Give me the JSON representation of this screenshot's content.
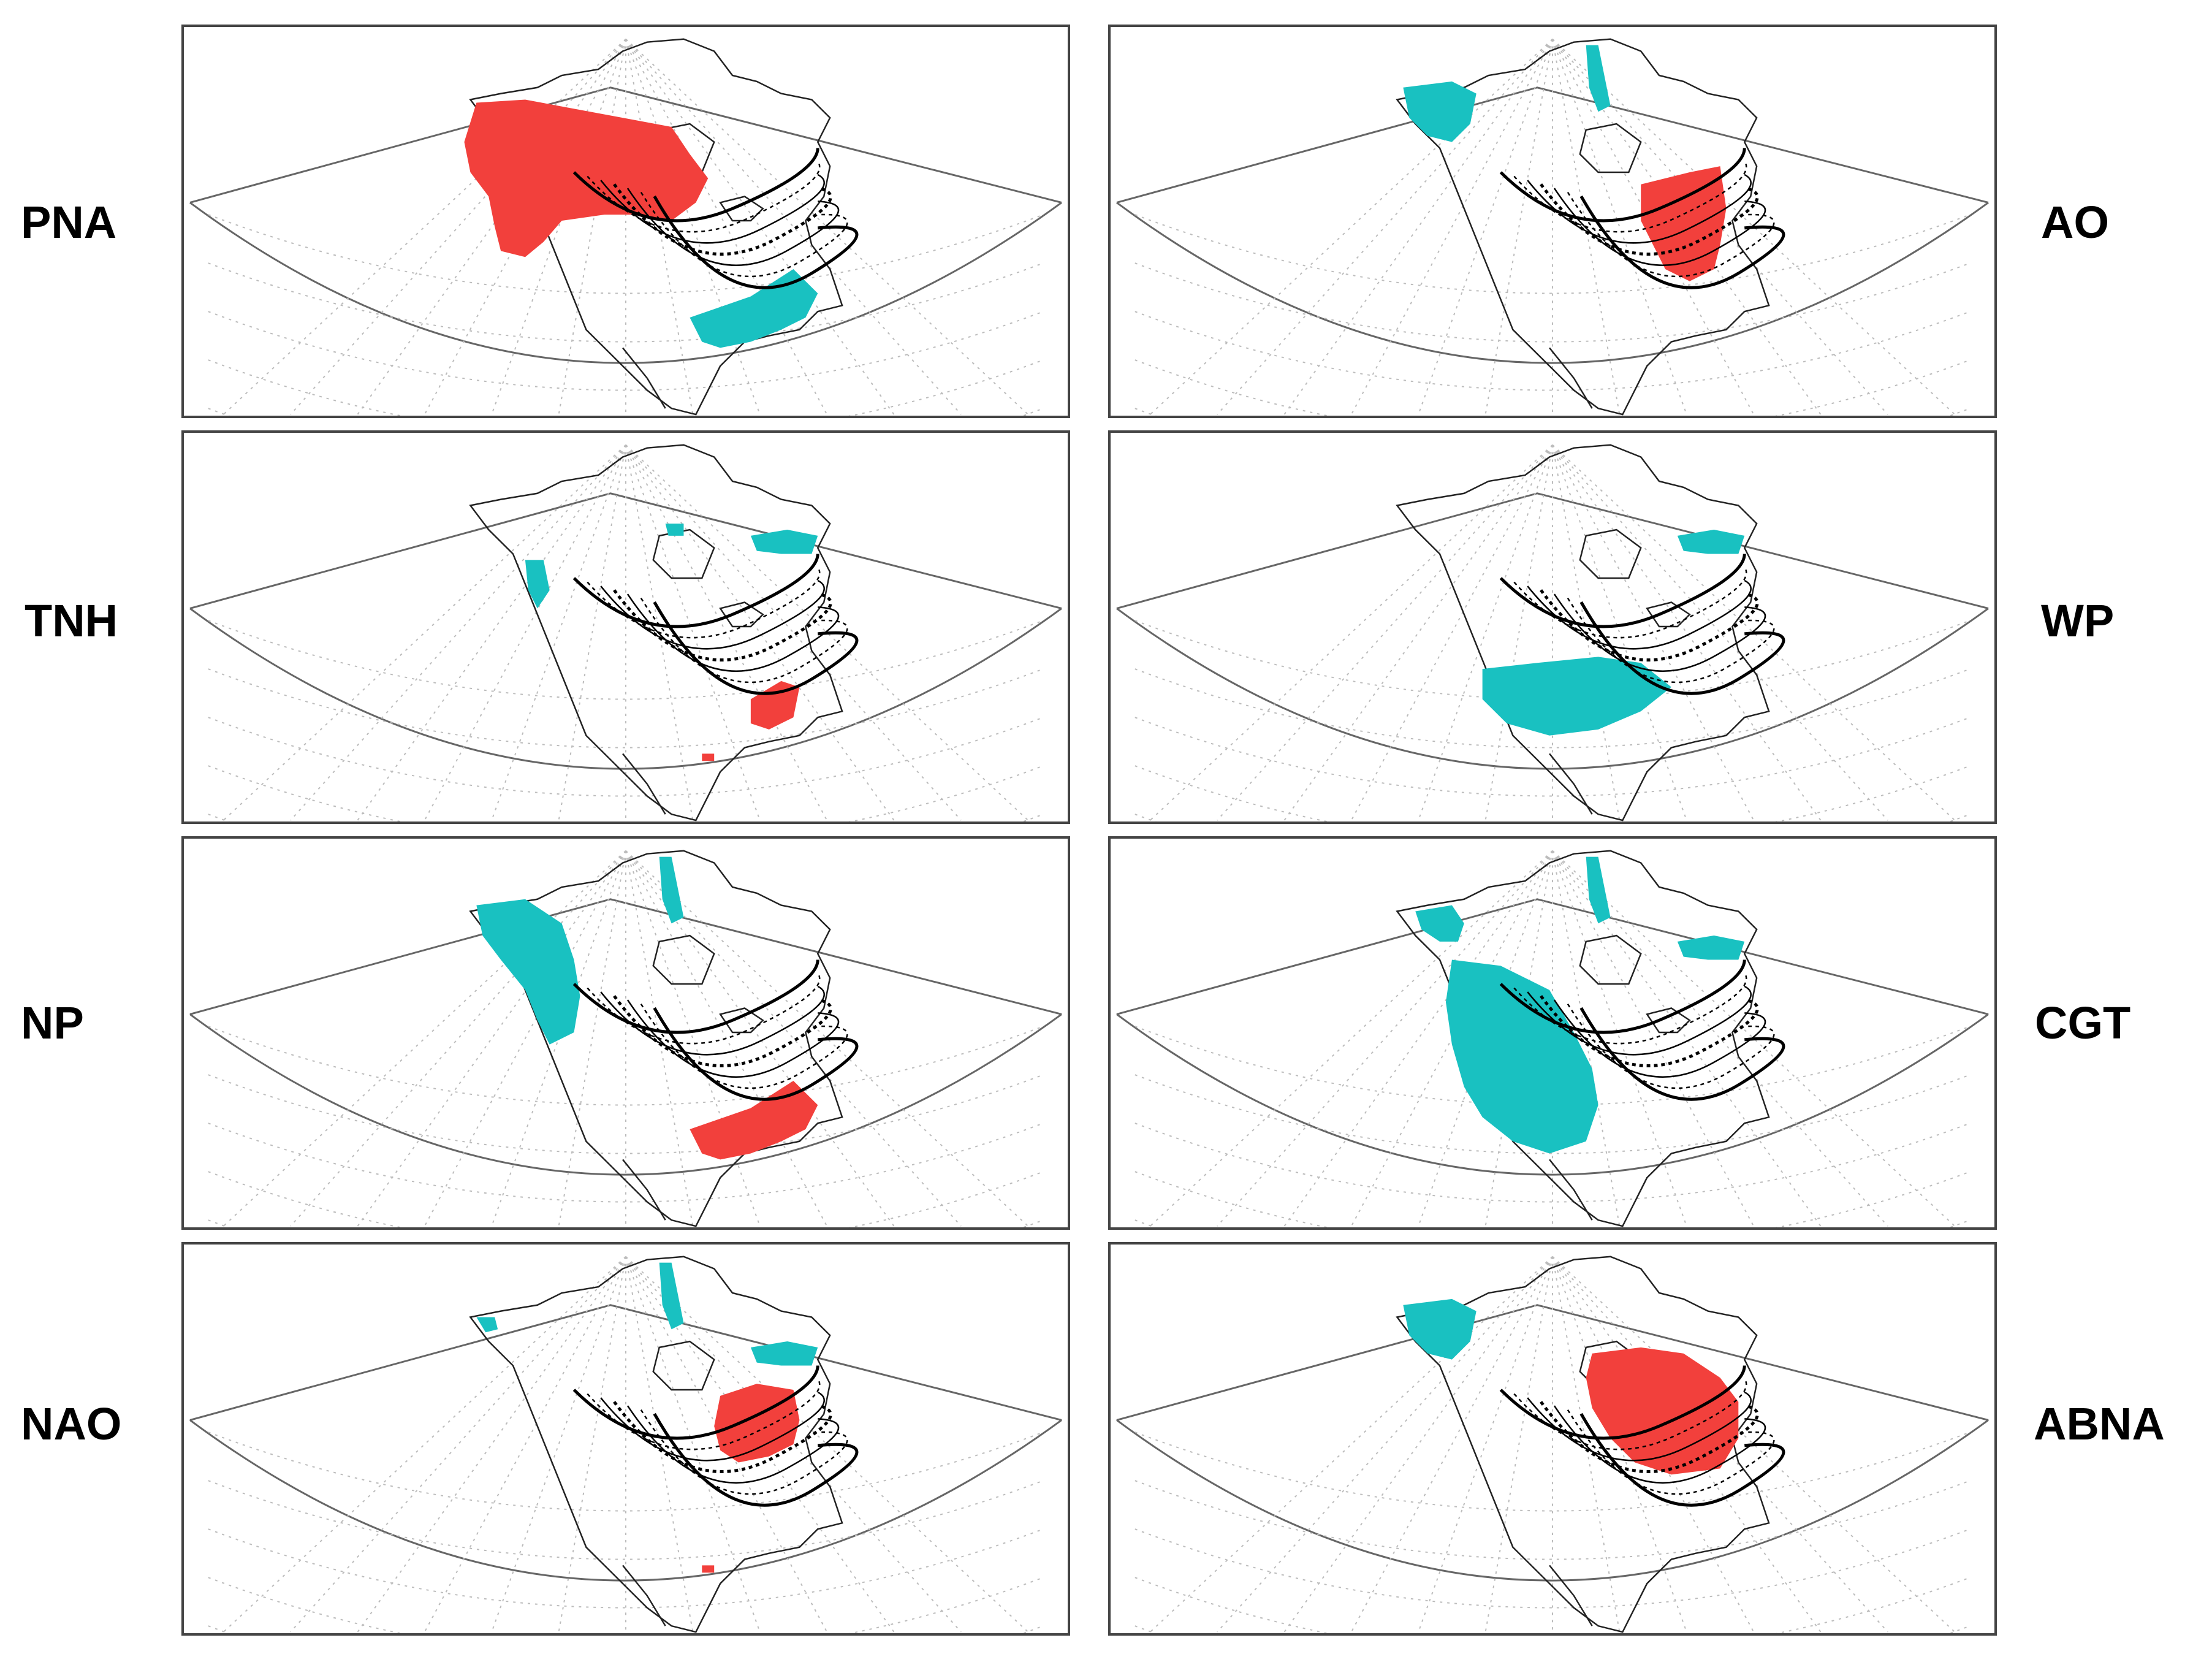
{
  "colors": {
    "positive": "#f2403c",
    "negative": "#19c1c1",
    "contour": "#000000",
    "grid": "#bcbcbc"
  },
  "panels": [
    {
      "id": "pna",
      "label": "PNA",
      "col": "left",
      "row": 0,
      "pos": [
        "w-canada"
      ],
      "neg": [
        "se-us"
      ]
    },
    {
      "id": "ao",
      "label": "AO",
      "col": "right",
      "row": 0,
      "pos": [
        "great-lakes"
      ],
      "neg": [
        "alaska",
        "arctic-isl"
      ]
    },
    {
      "id": "tnh",
      "label": "TNH",
      "col": "left",
      "row": 1,
      "pos": [
        "se-us-small",
        "mexico-dot"
      ],
      "neg": [
        "bc-coast",
        "hudson",
        "quebec"
      ]
    },
    {
      "id": "wp",
      "label": "WP",
      "col": "right",
      "row": 1,
      "pos": [],
      "neg": [
        "sw-us",
        "quebec"
      ]
    },
    {
      "id": "np",
      "label": "NP",
      "col": "left",
      "row": 2,
      "pos": [
        "se-us"
      ],
      "neg": [
        "nw-coast",
        "arctic-isl"
      ]
    },
    {
      "id": "cgt",
      "label": "CGT",
      "col": "right",
      "row": 2,
      "pos": [],
      "neg": [
        "west-us",
        "alaska-small",
        "arctic-isl",
        "quebec"
      ]
    },
    {
      "id": "nao",
      "label": "NAO",
      "col": "left",
      "row": 3,
      "pos": [
        "great-lakes-ne",
        "mexico-dot"
      ],
      "neg": [
        "arctic-isl",
        "alaska-dot",
        "quebec"
      ]
    },
    {
      "id": "abna",
      "label": "ABNA",
      "col": "right",
      "row": 3,
      "pos": [
        "great-lakes-big"
      ],
      "neg": [
        "alaska"
      ]
    }
  ]
}
